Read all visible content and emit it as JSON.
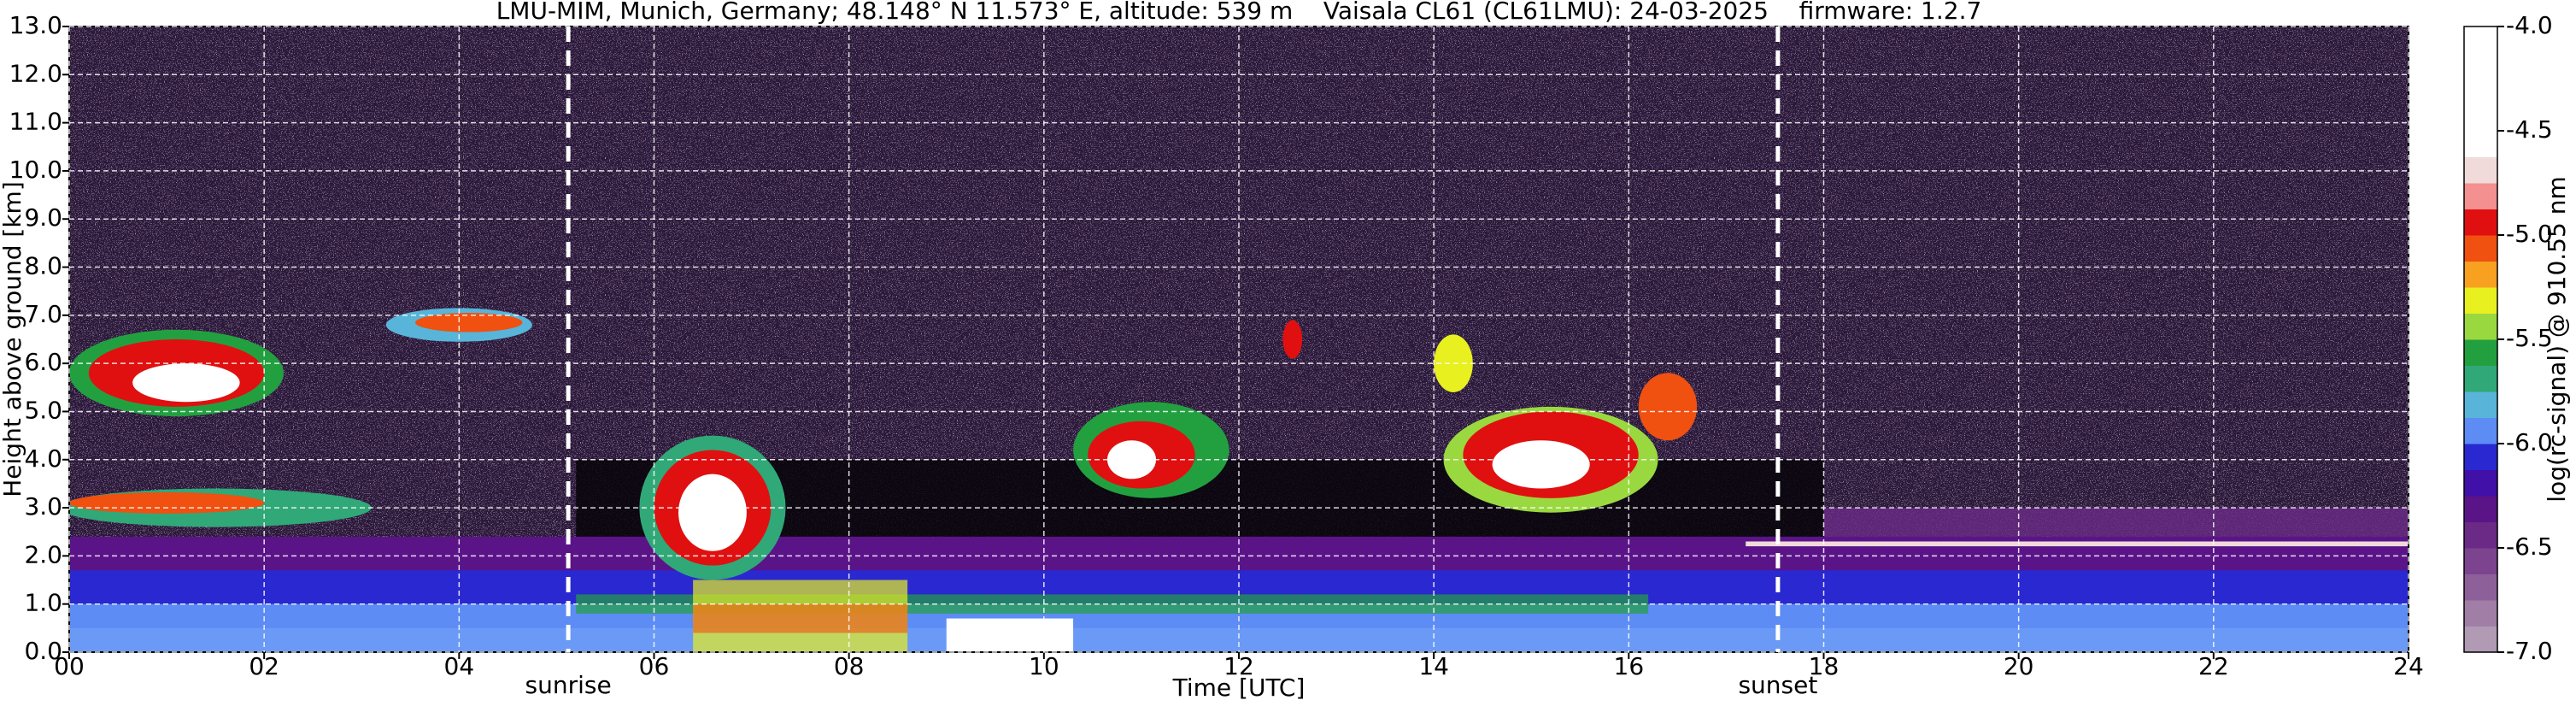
{
  "chart_data": {
    "type": "heatmap",
    "title": "LMU-MIM, Munich, Germany; 48.148° N 11.573° E, altitude: 539 m    Vaisala CL61 (CL61LMU): 24-03-2025    firmware: 1.2.7",
    "x_label": "Time [UTC]",
    "y_label": "Height above ground [km]",
    "xlim": [
      0,
      24
    ],
    "xticks": [
      {
        "value": 0,
        "label": "00"
      },
      {
        "value": 2,
        "label": "02"
      },
      {
        "value": 4,
        "label": "04"
      },
      {
        "value": 6,
        "label": "06"
      },
      {
        "value": 8,
        "label": "08"
      },
      10,
      12,
      14,
      16,
      18,
      20,
      22,
      24
    ],
    "ylim": [
      0,
      13
    ],
    "yticks": [
      {
        "value": 0,
        "label": "0.0"
      },
      {
        "value": 1,
        "label": "1.0"
      },
      {
        "value": 2,
        "label": "2.0"
      },
      {
        "value": 3,
        "label": "3.0"
      },
      {
        "value": 4,
        "label": "4.0"
      },
      {
        "value": 5,
        "label": "5.0"
      },
      {
        "value": 6,
        "label": "6.0"
      },
      {
        "value": 7,
        "label": "7.0"
      },
      {
        "value": 8,
        "label": "8.0"
      },
      {
        "value": 9,
        "label": "9.0"
      },
      {
        "value": 10,
        "label": "10.0"
      },
      {
        "value": 11,
        "label": "11.0"
      },
      {
        "value": 12,
        "label": "12.0"
      },
      {
        "value": 13,
        "label": "13.0"
      }
    ],
    "grid": true,
    "annotations": [
      {
        "x": 5.12,
        "label": "sunrise"
      },
      {
        "x": 17.53,
        "label": "sunset"
      }
    ],
    "colorbar": {
      "label": "log(rc-signal) @ 910.55 nm",
      "lim": [
        -7.0,
        -4.0
      ],
      "ticks": [
        {
          "value": -7,
          "label": "-7.0"
        },
        -6.5,
        {
          "value": -6,
          "label": "-6.0"
        },
        -5.5,
        {
          "value": -5,
          "label": "-5.0"
        },
        -4.5,
        {
          "value": -4,
          "label": "-4.0"
        }
      ],
      "colors": [
        "#b09ab4",
        "#a07ea6",
        "#8e609a",
        "#7c448e",
        "#6a2a86",
        "#5a1488",
        "#4010a8",
        "#2a28d0",
        "#5c8cf4",
        "#58b4d8",
        "#30a878",
        "#22a040",
        "#9ad840",
        "#e8f020",
        "#f8a020",
        "#f05010",
        "#e01010",
        "#f49090",
        "#f0dada",
        "#ffffff",
        "#ffffff",
        "#ffffff",
        "#ffffff",
        "#ffffff"
      ]
    }
  }
}
